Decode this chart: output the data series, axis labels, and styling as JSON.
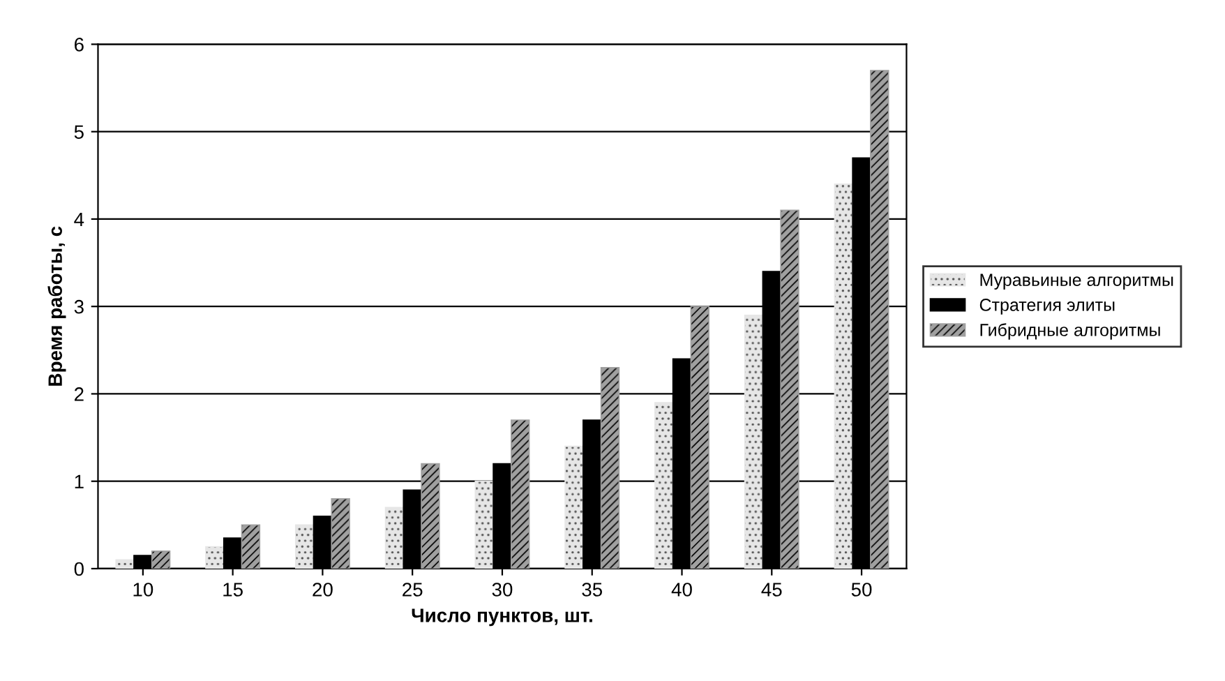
{
  "chart_data": {
    "type": "bar",
    "xlabel": "Число пунктов, шт.",
    "ylabel": "Время работы, с",
    "categories": [
      "10",
      "15",
      "20",
      "25",
      "30",
      "35",
      "40",
      "45",
      "50"
    ],
    "series": [
      {
        "name": "Муравьиные алгоритмы",
        "color": "#e6e6e6",
        "values": [
          0.1,
          0.25,
          0.5,
          0.7,
          1.0,
          1.4,
          1.9,
          2.9,
          4.4
        ]
      },
      {
        "name": "Стратегия элиты",
        "color": "#000000",
        "values": [
          0.15,
          0.35,
          0.6,
          0.9,
          1.2,
          1.7,
          2.4,
          3.4,
          4.7
        ]
      },
      {
        "name": "Гибридные алгоритмы",
        "color": "#a0a0a0",
        "values": [
          0.2,
          0.5,
          0.8,
          1.2,
          1.7,
          2.3,
          3.0,
          4.1,
          5.7
        ]
      }
    ],
    "ylim": [
      0,
      6
    ],
    "yticks": [
      0,
      1,
      2,
      3,
      4,
      5,
      6
    ],
    "grid": "y",
    "legend": "right"
  }
}
